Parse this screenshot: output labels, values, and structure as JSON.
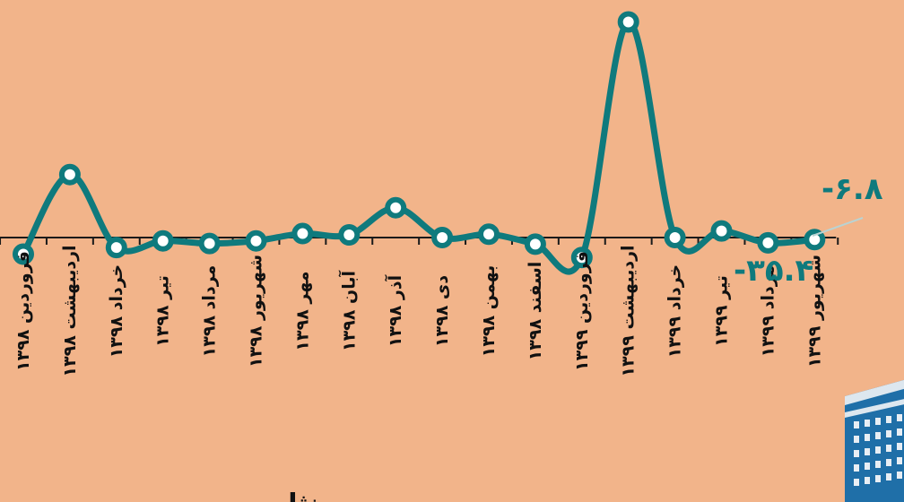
{
  "chart_data": {
    "type": "line",
    "x": [
      "فروردین ۱۳۹۸",
      "اردیبهشت ۱۳۹۸",
      "خرداد ۱۳۹۸",
      "تیر ۱۳۹۸",
      "مرداد ۱۳۹۸",
      "شهریور ۱۳۹۸",
      "مهر ۱۳۹۸",
      "آبان ۱۳۹۸",
      "آذر ۱۳۹۸",
      "دی ۱۳۹۸",
      "بهمن ۱۳۹۸",
      "اسفند ۱۳۹۸",
      "فروردین ۱۳۹۹",
      "اردیبهشت ۱۳۹۹",
      "خرداد ۱۳۹۹",
      "تیر ۱۳۹۹",
      "مرداد ۱۳۹۹",
      "شهریور ۱۳۹۹"
    ],
    "series": [
      {
        "values": [
          -25,
          95,
          -15,
          -5,
          -9,
          -5,
          6,
          4,
          45,
          0,
          5,
          -10,
          -30,
          325,
          0,
          10,
          -8,
          -3
        ],
        "color": "#0F7A7D"
      }
    ],
    "annotations": [
      "-۶.۸",
      "-۳۵.۴"
    ],
    "axis_title_fragment": "... نثار ...",
    "ylim": [
      -40,
      340
    ],
    "grid": false,
    "colors": {
      "background": "#F2B48A",
      "line": "#0F7A7D",
      "marker_fill": "#FFFFFF",
      "axis": "#1A1A1A"
    }
  },
  "decoration": {
    "building_icon": "building-icon"
  }
}
